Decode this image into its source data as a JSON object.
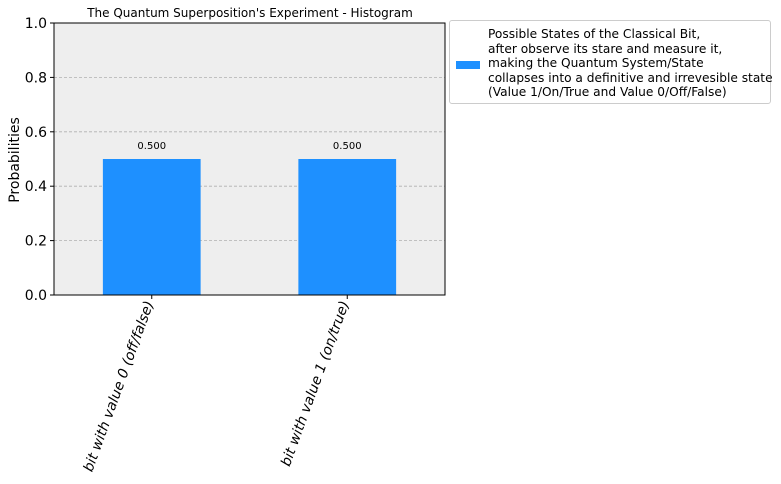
{
  "chart_data": {
    "type": "bar",
    "title": "The Quantum Superposition's Experiment - Histogram",
    "xlabel": "",
    "ylabel": "Probabilities",
    "categories": [
      "bit with value 0 (off/false)",
      "bit with value 1 (on/true)"
    ],
    "series": [
      {
        "name": "Possible States of the Classical Bit,\nafter observe its stare and measure it,\nmaking the Quantum System/State\ncollapses into a definitive and irrevesible state\n(Value 1/On/True and Value 0/Off/False)",
        "values": [
          0.5,
          0.5
        ]
      }
    ],
    "data_labels": [
      "0.500",
      "0.500"
    ],
    "ylim": [
      0,
      1.0
    ],
    "yticks": [
      "0.0",
      "0.2",
      "0.4",
      "0.6",
      "0.8",
      "1.0"
    ],
    "grid": "y dashed",
    "legend_position": "outside-top-right",
    "colors": {
      "bar": "#1E90FF",
      "plot_background": "#EEEEEE",
      "grid": "#B0B0B0"
    }
  }
}
